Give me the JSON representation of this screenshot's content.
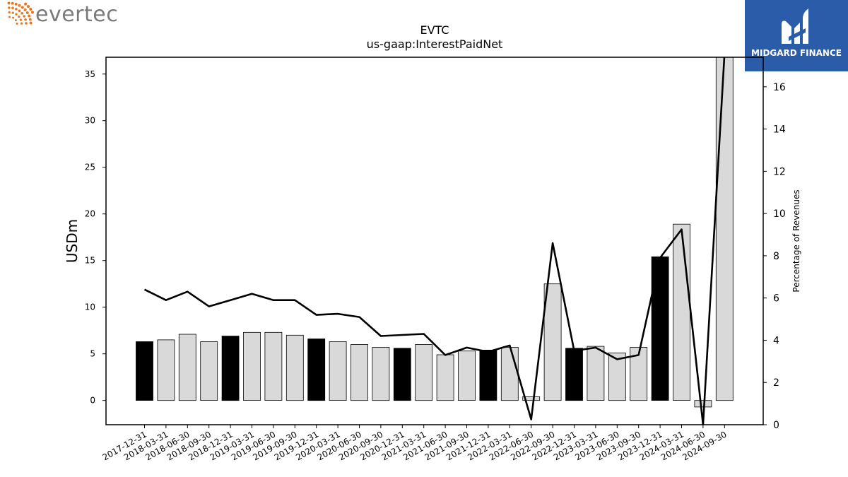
{
  "branding": {
    "left_logo_text": "evertec",
    "right_logo_text": "MIDGARD FINANCE",
    "right_logo_bg": "#2a5caa",
    "left_logo_color": "#e87722"
  },
  "chart_data": {
    "type": "bar",
    "title": "EVTC",
    "subtitle": "us-gaap:InterestPaidNet",
    "ylabel": "USDm",
    "y2label": "Percentage of Revenues",
    "ylim": [
      -2.6,
      36.8
    ],
    "y2lim": [
      0,
      17.4
    ],
    "yticks": [
      0,
      5,
      10,
      15,
      20,
      25,
      30,
      35
    ],
    "y2ticks": [
      0,
      2,
      4,
      6,
      8,
      10,
      12,
      14,
      16
    ],
    "categories": [
      "2017-12-31",
      "2018-03-31",
      "2018-06-30",
      "2018-09-30",
      "2018-12-31",
      "2019-03-31",
      "2019-06-30",
      "2019-09-30",
      "2019-12-31",
      "2020-03-31",
      "2020-06-30",
      "2020-09-30",
      "2020-12-31",
      "2021-03-31",
      "2021-06-30",
      "2021-09-30",
      "2021-12-31",
      "2022-03-31",
      "2022-06-30",
      "2022-09-30",
      "2022-12-31",
      "2023-03-31",
      "2023-06-30",
      "2023-09-30",
      "2023-12-31",
      "2024-03-31",
      "2024-06-30",
      "2024-09-30"
    ],
    "series": [
      {
        "kind": "bar",
        "values": [
          6.3,
          6.5,
          7.1,
          6.3,
          6.9,
          7.3,
          7.3,
          7.0,
          6.6,
          6.3,
          6.0,
          5.7,
          5.6,
          6.0,
          4.9,
          5.3,
          5.4,
          5.7,
          0.4,
          12.5,
          5.6,
          5.8,
          5.1,
          5.7,
          15.4,
          18.9,
          -0.7,
          37.0
        ],
        "highlight": [
          true,
          false,
          false,
          false,
          true,
          false,
          false,
          false,
          true,
          false,
          false,
          false,
          true,
          false,
          false,
          false,
          true,
          false,
          false,
          false,
          true,
          false,
          false,
          false,
          true,
          false,
          false,
          false
        ]
      },
      {
        "kind": "line",
        "axis": "right",
        "values": [
          6.4,
          5.9,
          6.3,
          5.6,
          5.9,
          6.2,
          5.9,
          5.9,
          5.2,
          5.25,
          5.1,
          4.2,
          4.25,
          4.3,
          3.3,
          3.65,
          3.45,
          3.75,
          0.25,
          8.6,
          3.5,
          3.65,
          3.1,
          3.3,
          7.9,
          9.25,
          0.0,
          17.6
        ]
      }
    ],
    "colors": {
      "bar_highlight": "#000000",
      "bar_normal": "#d9d9d9",
      "bar_edge": "#000000",
      "line": "#000000"
    },
    "grid": false
  }
}
